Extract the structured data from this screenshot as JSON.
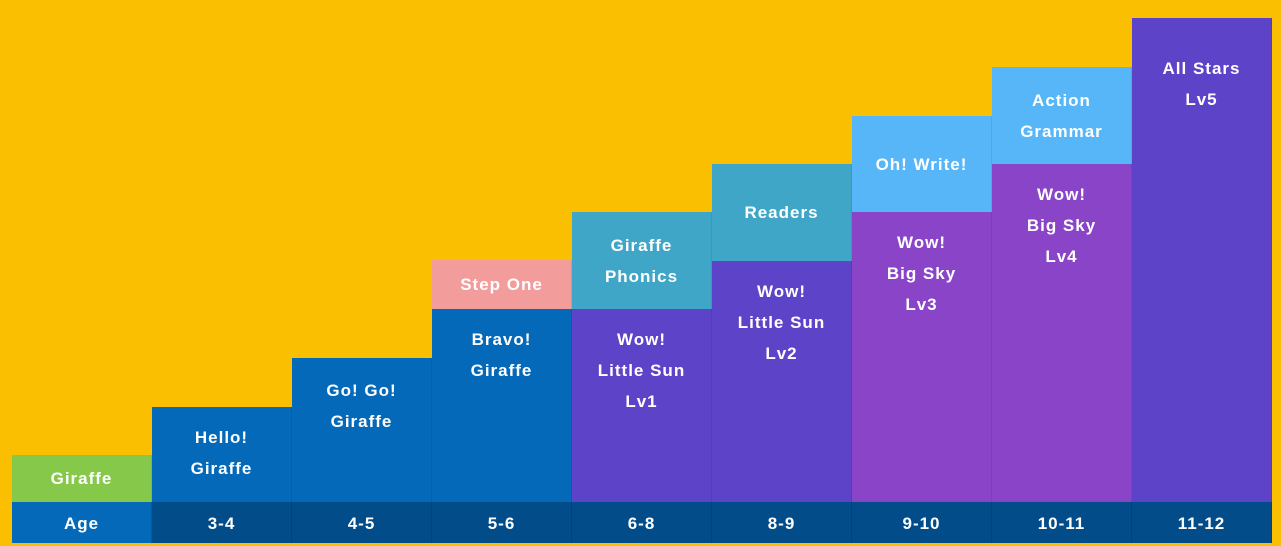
{
  "colors": {
    "background": "#F9BF00",
    "green": "#86C94A",
    "blue": "#0369B8",
    "dark_blue": "#034C8A",
    "pink": "#F29C9C",
    "teal": "#3FA6C8",
    "light_blue": "#57B6F7",
    "purple": "#5D43C8",
    "violet": "#8944C8"
  },
  "age_label": "Age",
  "columns": [
    {
      "age": "",
      "segments": [
        {
          "lines": [
            "Giraffe"
          ]
        }
      ]
    },
    {
      "age": "3-4",
      "segments": [
        {
          "lines": [
            "Hello!",
            "Giraffe"
          ]
        }
      ]
    },
    {
      "age": "4-5",
      "segments": [
        {
          "lines": [
            "Go! Go!",
            "Giraffe"
          ]
        }
      ]
    },
    {
      "age": "5-6",
      "segments": [
        {
          "lines": [
            "Step One"
          ]
        },
        {
          "lines": [
            "Bravo!",
            "Giraffe"
          ]
        }
      ]
    },
    {
      "age": "6-8",
      "segments": [
        {
          "lines": [
            "Giraffe",
            "Phonics"
          ]
        },
        {
          "lines": [
            "Wow!",
            "Little Sun",
            "Lv1"
          ]
        }
      ]
    },
    {
      "age": "8-9",
      "segments": [
        {
          "lines": [
            "Readers"
          ]
        },
        {
          "lines": [
            "Wow!",
            "Little Sun",
            "Lv2"
          ]
        }
      ]
    },
    {
      "age": "9-10",
      "segments": [
        {
          "lines": [
            "Oh! Write!"
          ]
        },
        {
          "lines": [
            "Wow!",
            "Big Sky",
            "Lv3"
          ]
        }
      ]
    },
    {
      "age": "10-11",
      "segments": [
        {
          "lines": [
            "Action",
            "Grammar"
          ]
        },
        {
          "lines": [
            "Wow!",
            "Big Sky",
            "Lv4"
          ]
        }
      ]
    },
    {
      "age": "11-12",
      "segments": [
        {
          "lines": [
            "All Stars",
            "Lv5"
          ]
        }
      ]
    }
  ]
}
